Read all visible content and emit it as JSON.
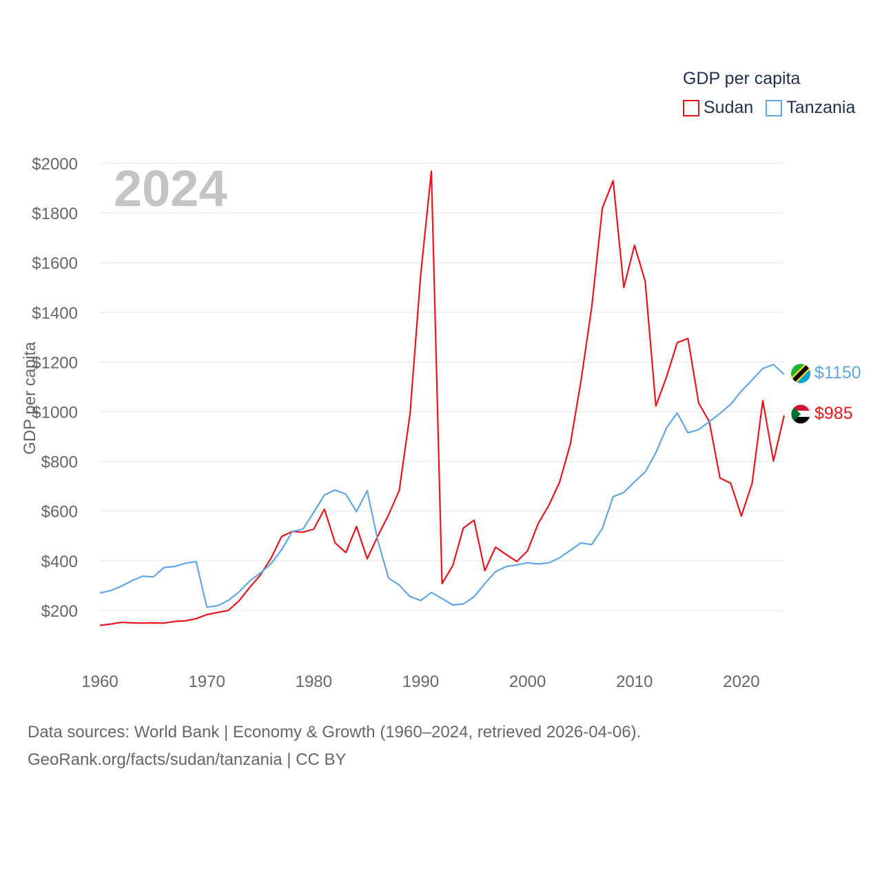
{
  "legend": {
    "title": "GDP per capita",
    "series": [
      {
        "name": "Sudan",
        "color": "#e8131c"
      },
      {
        "name": "Tanzania",
        "color": "#60a5e6"
      }
    ]
  },
  "year_label": "2024",
  "value_labels": {
    "tanzania": {
      "text": "$1150",
      "value": 1150,
      "flag": "tanzania-flag-icon"
    },
    "sudan": {
      "text": "$985",
      "value": 985,
      "flag": "sudan-flag-icon"
    }
  },
  "sources": {
    "line1": "Data sources: World Bank | Economy & Growth (1960–2024, retrieved 2026-04-06).",
    "line2": "GeoRank.org/facts/sudan/tanzania | CC BY"
  },
  "chart_data": {
    "type": "line",
    "title": "",
    "xlabel": "",
    "ylabel": "GDP per capita",
    "xlim": [
      1960,
      2024
    ],
    "ylim": [
      0,
      2000
    ],
    "x_ticks": [
      1960,
      1970,
      1980,
      1990,
      2000,
      2010,
      2020
    ],
    "y_ticks": [
      {
        "value": 200,
        "label": "$200"
      },
      {
        "value": 400,
        "label": "$400"
      },
      {
        "value": 600,
        "label": "$600"
      },
      {
        "value": 800,
        "label": "$800"
      },
      {
        "value": 1000,
        "label": "$1000"
      },
      {
        "value": 1200,
        "label": "$1200"
      },
      {
        "value": 1400,
        "label": "$1400"
      },
      {
        "value": 1600,
        "label": "$1600"
      },
      {
        "value": 1800,
        "label": "$1800"
      },
      {
        "value": 2000,
        "label": "$2000"
      }
    ],
    "grid": true,
    "x": [
      1960,
      1961,
      1962,
      1963,
      1964,
      1965,
      1966,
      1967,
      1968,
      1969,
      1970,
      1971,
      1972,
      1973,
      1974,
      1975,
      1976,
      1977,
      1978,
      1979,
      1980,
      1981,
      1982,
      1983,
      1984,
      1985,
      1986,
      1987,
      1988,
      1989,
      1990,
      1991,
      1992,
      1993,
      1994,
      1995,
      1996,
      1997,
      1998,
      1999,
      2000,
      2001,
      2002,
      2003,
      2004,
      2005,
      2006,
      2007,
      2008,
      2009,
      2010,
      2011,
      2012,
      2013,
      2014,
      2015,
      2016,
      2017,
      2018,
      2019,
      2020,
      2021,
      2022,
      2023,
      2024
    ],
    "series": [
      {
        "name": "Sudan",
        "color": "#e8131c",
        "values": [
          140,
          145,
          152,
          150,
          149,
          150,
          149,
          156,
          158,
          167,
          183,
          192,
          200,
          238,
          292,
          342,
          410,
          498,
          518,
          515,
          527,
          608,
          472,
          433,
          538,
          408,
          500,
          585,
          683,
          990,
          1550,
          1968,
          308,
          380,
          532,
          563,
          360,
          455,
          425,
          397,
          440,
          550,
          624,
          717,
          870,
          1125,
          1420,
          1820,
          1930,
          1500,
          1670,
          1525,
          1023,
          1140,
          1278,
          1295,
          1035,
          960,
          733,
          712,
          580,
          712,
          1045,
          802,
          985
        ]
      },
      {
        "name": "Tanzania",
        "color": "#60a5e6",
        "values": [
          270,
          280,
          297,
          320,
          338,
          335,
          373,
          377,
          390,
          397,
          213,
          219,
          240,
          274,
          318,
          350,
          388,
          445,
          518,
          528,
          595,
          665,
          685,
          668,
          598,
          682,
          480,
          330,
          302,
          256,
          240,
          272,
          248,
          222,
          226,
          255,
          308,
          356,
          377,
          383,
          392,
          387,
          392,
          412,
          442,
          472,
          465,
          530,
          658,
          675,
          718,
          757,
          835,
          935,
          995,
          915,
          928,
          960,
          993,
          1030,
          1083,
          1128,
          1174,
          1190,
          1150
        ]
      }
    ]
  }
}
